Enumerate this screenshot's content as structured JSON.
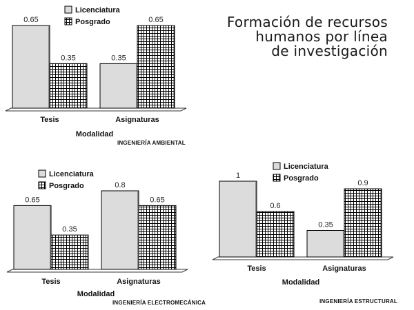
{
  "page": {
    "title_lines": [
      "Formación de recursos",
      "humanos por línea",
      "de investigación"
    ]
  },
  "colors": {
    "licenciatura_fill": "#dcdcdc",
    "posgrado_grid": "#000000",
    "posgrado_bg": "#ffffff",
    "axis": "#333333"
  },
  "chart_data": [
    {
      "type": "bar",
      "title": "INGENIERÍA AMBIENTAL",
      "xlabel": "Modalidad",
      "ylabel": "",
      "ylim": [
        0,
        0.65
      ],
      "grid": false,
      "legend_position": "top",
      "categories": [
        "Tesis",
        "Asignaturas"
      ],
      "series": [
        {
          "name": "Licenciatura",
          "pattern": "solid",
          "values": [
            0.65,
            0.35
          ]
        },
        {
          "name": "Posgrado",
          "pattern": "grid",
          "values": [
            0.35,
            0.65
          ]
        }
      ]
    },
    {
      "type": "bar",
      "title": "INGENIERÍA ELECTROMECÁNICA",
      "xlabel": "Modalidad",
      "ylabel": "",
      "ylim": [
        0,
        0.8
      ],
      "grid": false,
      "legend_position": "top",
      "categories": [
        "Tesis",
        "Asignaturas"
      ],
      "series": [
        {
          "name": "Licenciatura",
          "pattern": "solid",
          "values": [
            0.65,
            0.8
          ]
        },
        {
          "name": "Posgrado",
          "pattern": "grid",
          "values": [
            0.35,
            0.65
          ]
        }
      ]
    },
    {
      "type": "bar",
      "title": "INGENIERÍA ESTRUCTURAL",
      "xlabel": "Modalidad",
      "ylabel": "",
      "ylim": [
        0,
        1
      ],
      "grid": false,
      "legend_position": "top",
      "categories": [
        "Tesis",
        "Asignaturas"
      ],
      "series": [
        {
          "name": "Licenciatura",
          "pattern": "solid",
          "values": [
            1,
            0.35
          ]
        },
        {
          "name": "Posgrado",
          "pattern": "grid",
          "values": [
            0.6,
            0.9
          ]
        }
      ]
    }
  ]
}
